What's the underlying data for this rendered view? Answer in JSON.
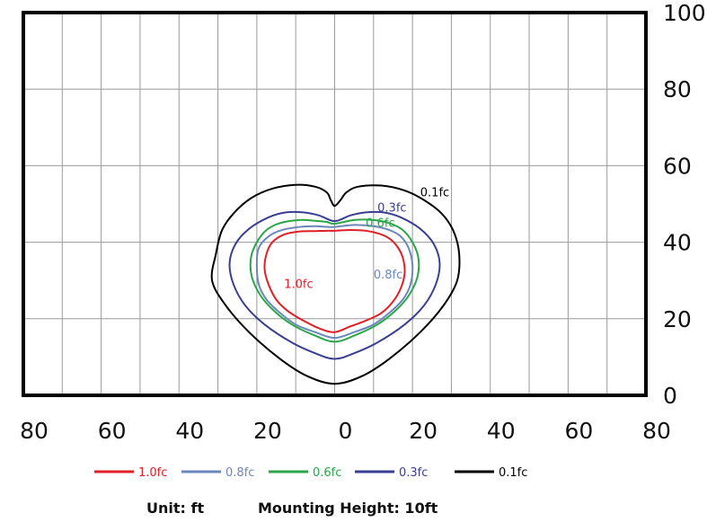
{
  "chart_data": {
    "type": "line",
    "title": "",
    "xlabel": "",
    "ylabel": "",
    "xlim": [
      -80,
      80
    ],
    "ylim": [
      0,
      100
    ],
    "x_tick_values": [
      -80,
      -60,
      -40,
      -20,
      0,
      20,
      40,
      60,
      80
    ],
    "x_tick_labels": [
      "80",
      "60",
      "40",
      "20",
      "0",
      "20",
      "40",
      "60",
      "80"
    ],
    "y_ticks": [
      0,
      20,
      40,
      60,
      80,
      100
    ],
    "grid": true,
    "legend_position": "bottom",
    "series": [
      {
        "name": "1.0fc",
        "color": "#e02027",
        "label_at": [
          -13,
          28
        ],
        "points": [
          [
            0,
            43
          ],
          [
            4,
            43.2
          ],
          [
            8,
            43
          ],
          [
            11.5,
            42.2
          ],
          [
            14,
            41
          ],
          [
            16,
            39
          ],
          [
            17.5,
            36
          ],
          [
            18,
            32
          ],
          [
            17,
            28
          ],
          [
            15,
            24.5
          ],
          [
            12,
            21.5
          ],
          [
            8,
            19.5
          ],
          [
            4,
            18
          ],
          [
            0,
            16.5
          ],
          [
            -4,
            17.5
          ],
          [
            -8,
            19.5
          ],
          [
            -12,
            22
          ],
          [
            -15,
            25
          ],
          [
            -17,
            29
          ],
          [
            -18,
            33
          ],
          [
            -17.5,
            37
          ],
          [
            -16,
            40
          ],
          [
            -13,
            42
          ],
          [
            -9,
            42.8
          ],
          [
            -5,
            42.9
          ],
          [
            -2,
            43
          ],
          [
            0,
            43
          ]
        ]
      },
      {
        "name": "0.8fc",
        "color": "#6b87bb",
        "label_at": [
          10,
          30.5
        ],
        "points": [
          [
            0,
            44
          ],
          [
            5,
            44.5
          ],
          [
            10,
            44.2
          ],
          [
            14,
            43.2
          ],
          [
            17,
            41.5
          ],
          [
            19,
            38.5
          ],
          [
            20,
            34
          ],
          [
            19.5,
            29
          ],
          [
            17.5,
            25
          ],
          [
            14,
            21.5
          ],
          [
            10,
            18.5
          ],
          [
            5,
            16.5
          ],
          [
            0,
            15
          ],
          [
            -5,
            16.5
          ],
          [
            -10,
            18.5
          ],
          [
            -14,
            21.5
          ],
          [
            -17.5,
            25
          ],
          [
            -19.5,
            29
          ],
          [
            -20,
            34
          ],
          [
            -19.5,
            38.5
          ],
          [
            -17,
            41.5
          ],
          [
            -13.5,
            43.2
          ],
          [
            -9,
            44
          ],
          [
            -5,
            44.2
          ],
          [
            -2,
            44
          ],
          [
            0,
            44
          ]
        ]
      },
      {
        "name": "0.6fc",
        "color": "#2aa648",
        "label_at": [
          8,
          44
        ],
        "points": [
          [
            0,
            44.8
          ],
          [
            5,
            45.8
          ],
          [
            10,
            45.8
          ],
          [
            14,
            45
          ],
          [
            17.5,
            43.2
          ],
          [
            20,
            40
          ],
          [
            21.5,
            36
          ],
          [
            21.3,
            31
          ],
          [
            19,
            26
          ],
          [
            15.5,
            22
          ],
          [
            11,
            18.5
          ],
          [
            5.5,
            15.8
          ],
          [
            0,
            14
          ],
          [
            -5.5,
            15.8
          ],
          [
            -11,
            18.5
          ],
          [
            -15.5,
            22
          ],
          [
            -19,
            26
          ],
          [
            -21.3,
            31
          ],
          [
            -21.5,
            36
          ],
          [
            -20,
            40
          ],
          [
            -17.5,
            43.2
          ],
          [
            -14,
            45
          ],
          [
            -9,
            45.8
          ],
          [
            -5,
            45.6
          ],
          [
            -2,
            45.3
          ],
          [
            0,
            44.8
          ]
        ]
      },
      {
        "name": "0.3fc",
        "color": "#3a3f91",
        "label_at": [
          11,
          48
        ],
        "points": [
          [
            0,
            45.5
          ],
          [
            4,
            47
          ],
          [
            8,
            47.8
          ],
          [
            12.5,
            47.8
          ],
          [
            17,
            46.5
          ],
          [
            22,
            43.5
          ],
          [
            25.5,
            39.5
          ],
          [
            27,
            34.5
          ],
          [
            26,
            29
          ],
          [
            23,
            23.5
          ],
          [
            18,
            18.5
          ],
          [
            11,
            13.8
          ],
          [
            5,
            11
          ],
          [
            0,
            9.5
          ],
          [
            -5,
            11
          ],
          [
            -11,
            13.8
          ],
          [
            -18,
            18.5
          ],
          [
            -23,
            23.5
          ],
          [
            -26,
            29
          ],
          [
            -27,
            34.5
          ],
          [
            -25.5,
            39.5
          ],
          [
            -22,
            43.5
          ],
          [
            -17,
            46.5
          ],
          [
            -12.5,
            47.8
          ],
          [
            -8,
            47.8
          ],
          [
            -4,
            47
          ],
          [
            0,
            45.5
          ]
        ]
      },
      {
        "name": "0.1fc",
        "color": "#000000",
        "label_at": [
          22,
          52
        ],
        "points": [
          [
            0,
            49.5
          ],
          [
            1.5,
            51
          ],
          [
            3,
            53
          ],
          [
            6,
            54.5
          ],
          [
            12,
            54.8
          ],
          [
            18,
            53.5
          ],
          [
            23,
            51
          ],
          [
            27.5,
            47.5
          ],
          [
            30.5,
            43
          ],
          [
            32,
            37
          ],
          [
            31.5,
            30
          ],
          [
            28,
            23.5
          ],
          [
            22,
            16.5
          ],
          [
            14,
            9.5
          ],
          [
            7,
            5
          ],
          [
            0,
            3
          ],
          [
            -7,
            5
          ],
          [
            -14,
            9.5
          ],
          [
            -22,
            16.5
          ],
          [
            -28,
            23.5
          ],
          [
            -31.5,
            30
          ],
          [
            -30.5,
            37
          ],
          [
            -29,
            43
          ],
          [
            -26,
            47.5
          ],
          [
            -21.5,
            51.5
          ],
          [
            -16,
            54
          ],
          [
            -10,
            55
          ],
          [
            -5,
            54.5
          ],
          [
            -2,
            53
          ],
          [
            -1,
            51
          ],
          [
            0,
            49.5
          ]
        ]
      }
    ]
  },
  "footer": {
    "unit": "Unit: ft",
    "mounting": "Mounting Height: 10ft"
  }
}
